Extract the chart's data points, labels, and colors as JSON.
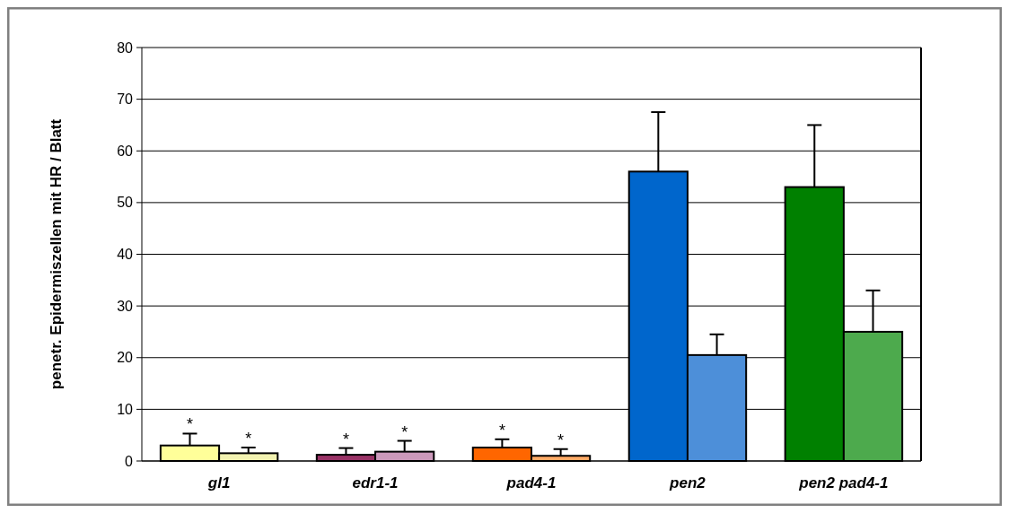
{
  "chart_data": {
    "type": "bar",
    "ylabel": "penetr. Epidermiszellen mit HR / Blatt",
    "categories": [
      "gl1",
      "edr1-1",
      "pad4-1",
      "pen2",
      "pen2 pad4-1"
    ],
    "series": [
      {
        "colors": [
          "#ffff99",
          "#993366",
          "#ff6600",
          "#0066cc",
          "#008000"
        ],
        "values": [
          3.0,
          1.2,
          2.6,
          56,
          53
        ],
        "errors": [
          2.3,
          1.3,
          1.6,
          11.5,
          12
        ]
      },
      {
        "colors": [
          "#f2f2b0",
          "#cc99bb",
          "#ffaa66",
          "#4d8fd9",
          "#4daa4d"
        ],
        "values": [
          1.5,
          1.8,
          1.0,
          20.5,
          25
        ],
        "errors": [
          1.1,
          2.1,
          1.3,
          4,
          8
        ]
      }
    ],
    "ylim": [
      0,
      80
    ],
    "yticks": [
      0,
      10,
      20,
      30,
      40,
      50,
      60,
      70,
      80
    ],
    "grid": "y",
    "annotations": [
      "*",
      "*",
      "*",
      "*",
      "*",
      "*"
    ]
  }
}
